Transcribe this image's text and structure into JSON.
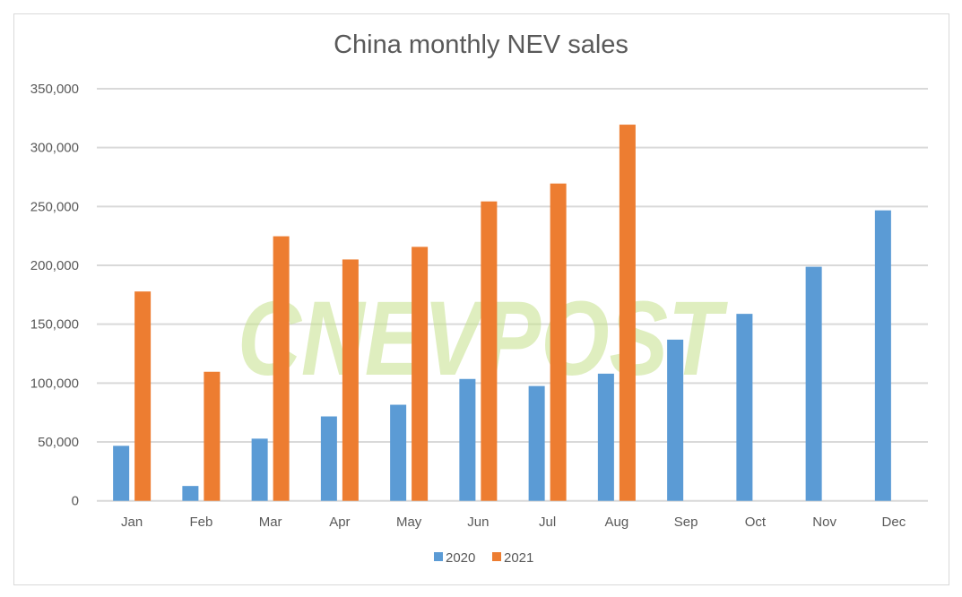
{
  "chart_data": {
    "type": "bar",
    "title": "China monthly NEV sales",
    "xlabel": "",
    "ylabel": "",
    "categories": [
      "Jan",
      "Feb",
      "Mar",
      "Apr",
      "May",
      "Jun",
      "Jul",
      "Aug",
      "Sep",
      "Oct",
      "Nov",
      "Dec"
    ],
    "series": [
      {
        "name": "2020",
        "color": "#5b9bd5",
        "values": [
          46700,
          12600,
          52800,
          71700,
          81600,
          103500,
          97500,
          108000,
          136900,
          158800,
          198800,
          246700
        ]
      },
      {
        "name": "2021",
        "color": "#ed7d31",
        "values": [
          177800,
          109600,
          224700,
          205000,
          215700,
          254300,
          269500,
          319500,
          null,
          null,
          null,
          null
        ]
      }
    ],
    "ylim": [
      0,
      350000
    ],
    "yticks": [
      0,
      50000,
      100000,
      150000,
      200000,
      250000,
      300000,
      350000
    ],
    "ytick_labels": [
      "0",
      "50,000",
      "100,000",
      "150,000",
      "200,000",
      "250,000",
      "300,000",
      "350,000"
    ],
    "grid": true,
    "legend": "bottom"
  },
  "watermark": "CNEVPOST"
}
